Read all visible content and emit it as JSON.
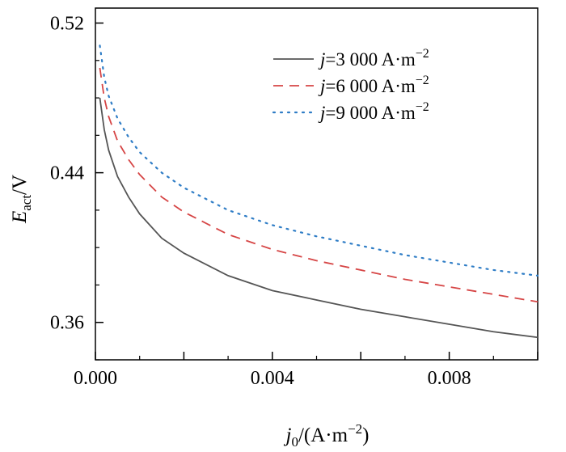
{
  "chart_data": {
    "type": "line",
    "xlabel": {
      "var": "j",
      "sub": "0",
      "unit": "/(A·m",
      "sup": "−2",
      "close": ")"
    },
    "ylabel": {
      "var": "E",
      "sub": "act",
      "unit": "/V"
    },
    "xlim": [
      0,
      0.01
    ],
    "ylim": [
      0.34,
      0.528
    ],
    "x_ticks": [
      0.0,
      0.004,
      0.008
    ],
    "x_tick_labels": [
      "0.000",
      "0.004",
      "0.008"
    ],
    "y_ticks": [
      0.36,
      0.44,
      0.52
    ],
    "y_tick_labels": [
      "0.36",
      "0.44",
      "0.52"
    ],
    "legend_position": "top-right",
    "series": [
      {
        "name": "j=3 000 A·m−2",
        "legend": {
          "var": "j",
          "text": "=3 000 A·m",
          "sup": "−2"
        },
        "color": "#555555",
        "style": "solid",
        "x": [
          0.0001,
          0.0002,
          0.0003,
          0.0005,
          0.00075,
          0.001,
          0.0015,
          0.002,
          0.003,
          0.004,
          0.005,
          0.006,
          0.007,
          0.008,
          0.009,
          0.01
        ],
        "y": [
          0.48,
          0.463,
          0.452,
          0.438,
          0.427,
          0.418,
          0.405,
          0.397,
          0.385,
          0.377,
          0.372,
          0.367,
          0.363,
          0.359,
          0.355,
          0.352
        ]
      },
      {
        "name": "j=6 000 A·m−2",
        "legend": {
          "var": "j",
          "text": "=6 000 A·m",
          "sup": "−2"
        },
        "color": "#d64545",
        "style": "dashed",
        "x": [
          0.0001,
          0.0002,
          0.0003,
          0.0005,
          0.00075,
          0.001,
          0.0015,
          0.002,
          0.003,
          0.004,
          0.005,
          0.006,
          0.007,
          0.008,
          0.009,
          0.01
        ],
        "y": [
          0.496,
          0.48,
          0.47,
          0.457,
          0.447,
          0.439,
          0.427,
          0.419,
          0.407,
          0.399,
          0.393,
          0.388,
          0.383,
          0.379,
          0.375,
          0.371
        ]
      },
      {
        "name": "j=9 000 A·m−2",
        "legend": {
          "var": "j",
          "text": "=9 000 A·m",
          "sup": "−2"
        },
        "color": "#2f7dc6",
        "style": "dotted",
        "x": [
          0.0001,
          0.0002,
          0.0003,
          0.0005,
          0.00075,
          0.001,
          0.0015,
          0.002,
          0.003,
          0.004,
          0.005,
          0.006,
          0.007,
          0.008,
          0.009,
          0.01
        ],
        "y": [
          0.508,
          0.491,
          0.481,
          0.469,
          0.459,
          0.451,
          0.44,
          0.432,
          0.42,
          0.412,
          0.406,
          0.401,
          0.396,
          0.392,
          0.388,
          0.385
        ]
      }
    ]
  }
}
